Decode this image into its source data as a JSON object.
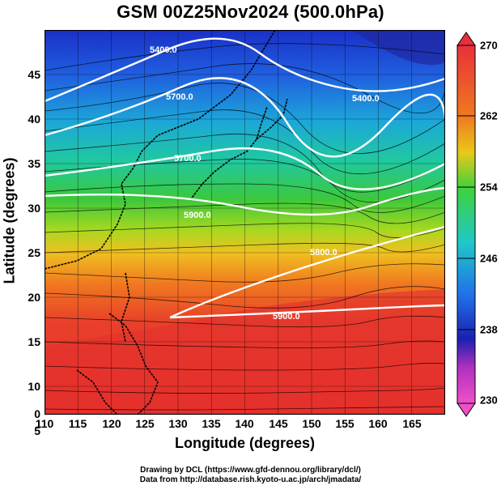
{
  "title": "GSM 00Z25Nov2024 (500.0hPa)",
  "axes": {
    "xlabel": "Longitude (degrees)",
    "ylabel": "Latitude  (degrees)",
    "xticks": [
      "110",
      "115",
      "120",
      "125",
      "130",
      "135",
      "140",
      "145",
      "150",
      "155",
      "160",
      "165"
    ],
    "yticks": [
      "45",
      "40",
      "35",
      "30",
      "25",
      "20",
      "15",
      "10",
      "5",
      "0"
    ]
  },
  "colorbar": {
    "labels": [
      "270",
      "262",
      "254",
      "246",
      "238",
      "230"
    ],
    "colors": [
      "#e8303a",
      "#f07a1e",
      "#e8c81a",
      "#3ed23c",
      "#20c8c8",
      "#2070e8",
      "#1a20b0",
      "#b030c0",
      "#f050c8"
    ]
  },
  "contours": {
    "labels": [
      "5400.0",
      "5700.0",
      "5700.0",
      "5400.0",
      "5900.0",
      "5800.0",
      "5900.0"
    ]
  },
  "credits": {
    "line1": "Drawing by DCL (https://www.gfd-dennou.org/library/dcl/)",
    "line2": "Data from http://database.rish.kyoto-u.ac.jp/arch/jmadata/"
  }
}
